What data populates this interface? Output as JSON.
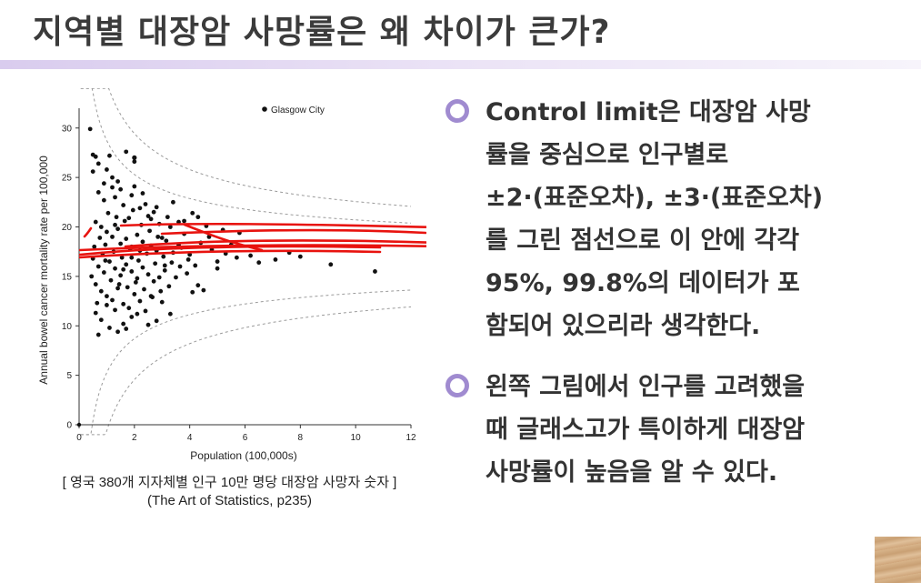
{
  "slide": {
    "title": "지역별 대장암 사망률은 왜 차이가 큰가?",
    "caption_line1": "[ 영국 380개 지자체별 인구 10만 명당 대장암 사망자 숫자 ]",
    "caption_line2": "(The Art of Statistics, p235)"
  },
  "bullets": [
    {
      "lines": [
        "Control limit은 대장암 사망",
        "률을 중심으로 인구별로",
        "±2·(표준오차), ±3·(표준오차)",
        "를 그린 점선으로 이 안에 각각",
        "95%, 99.8%의 데이터가 포",
        "함되어 있으리라 생각한다."
      ]
    },
    {
      "lines": [
        "왼쪽 그림에서 인구를 고려했을",
        "때 글래스고가 특이하게 대장암",
        "사망률이 높음을 알 수 있다."
      ]
    }
  ],
  "colors": {
    "bullet_marker": "#a08bd0",
    "annotation": "#e8130f"
  },
  "chart_data": {
    "type": "scatter",
    "xlabel": "Population (100,000s)",
    "ylabel": "Annual bowel cancer mortality rate per 100,000",
    "xlim": [
      0,
      12
    ],
    "ylim": [
      0,
      32
    ],
    "xticks": [
      0,
      2,
      4,
      6,
      8,
      10,
      12
    ],
    "yticks": [
      0,
      5,
      10,
      15,
      20,
      25,
      30
    ],
    "center_rate": 17,
    "legend": "Glasgow City",
    "legend_position": "top-right",
    "control_limits": "±2·SE and ±3·SE funnel (dotted)",
    "points": [
      [
        0.4,
        29.9
      ],
      [
        0.5,
        27.3
      ],
      [
        0.6,
        27.1
      ],
      [
        0.7,
        26.4
      ],
      [
        0.5,
        25.6
      ],
      [
        1.0,
        25.8
      ],
      [
        1.2,
        25.0
      ],
      [
        1.4,
        24.6
      ],
      [
        1.7,
        27.6
      ],
      [
        2.0,
        24.1
      ],
      [
        2.4,
        22.3
      ],
      [
        2.8,
        22.0
      ],
      [
        3.2,
        21.0
      ],
      [
        3.6,
        20.5
      ],
      [
        4.1,
        21.4
      ],
      [
        4.3,
        21.0
      ],
      [
        0.7,
        23.5
      ],
      [
        0.9,
        22.7
      ],
      [
        1.3,
        23.0
      ],
      [
        1.6,
        22.2
      ],
      [
        1.9,
        23.2
      ],
      [
        2.2,
        21.9
      ],
      [
        2.5,
        21.1
      ],
      [
        2.9,
        20.3
      ],
      [
        3.3,
        20.0
      ],
      [
        3.8,
        19.3
      ],
      [
        4.6,
        20.1
      ],
      [
        5.2,
        19.7
      ],
      [
        5.8,
        19.4
      ],
      [
        0.6,
        20.5
      ],
      [
        0.8,
        20.0
      ],
      [
        1.0,
        19.5
      ],
      [
        1.2,
        19.0
      ],
      [
        1.4,
        19.8
      ],
      [
        1.5,
        18.3
      ],
      [
        1.7,
        18.8
      ],
      [
        1.9,
        18.0
      ],
      [
        2.1,
        19.2
      ],
      [
        2.3,
        18.5
      ],
      [
        2.6,
        18.1
      ],
      [
        2.8,
        17.6
      ],
      [
        3.0,
        18.9
      ],
      [
        3.4,
        17.4
      ],
      [
        3.7,
        17.9
      ],
      [
        4.0,
        17.2
      ],
      [
        4.4,
        18.4
      ],
      [
        4.8,
        17.7
      ],
      [
        5.3,
        17.3
      ],
      [
        5.7,
        16.9
      ],
      [
        6.2,
        17.1
      ],
      [
        7.1,
        16.7
      ],
      [
        8.0,
        17.0
      ],
      [
        9.1,
        16.2
      ],
      [
        10.7,
        15.5
      ],
      [
        0.5,
        16.8
      ],
      [
        0.7,
        16.0
      ],
      [
        0.9,
        15.4
      ],
      [
        1.1,
        16.5
      ],
      [
        1.3,
        15.8
      ],
      [
        1.5,
        15.1
      ],
      [
        1.7,
        16.2
      ],
      [
        1.9,
        15.5
      ],
      [
        2.1,
        14.8
      ],
      [
        2.3,
        15.9
      ],
      [
        2.5,
        15.2
      ],
      [
        2.7,
        14.5
      ],
      [
        3.1,
        15.6
      ],
      [
        3.5,
        14.9
      ],
      [
        3.9,
        15.3
      ],
      [
        4.3,
        14.1
      ],
      [
        4.5,
        13.6
      ],
      [
        5.0,
        15.8
      ],
      [
        0.6,
        14.2
      ],
      [
        0.8,
        13.5
      ],
      [
        1.0,
        13.0
      ],
      [
        1.2,
        12.6
      ],
      [
        1.4,
        13.8
      ],
      [
        1.6,
        12.2
      ],
      [
        1.8,
        11.8
      ],
      [
        2.0,
        13.2
      ],
      [
        2.2,
        12.5
      ],
      [
        2.4,
        11.5
      ],
      [
        2.6,
        13.0
      ],
      [
        3.0,
        12.4
      ],
      [
        3.3,
        11.2
      ],
      [
        0.6,
        11.3
      ],
      [
        0.8,
        10.6
      ],
      [
        1.1,
        9.8
      ],
      [
        1.4,
        9.4
      ],
      [
        1.9,
        10.9
      ],
      [
        1.3,
        11.6
      ],
      [
        2.8,
        10.5
      ],
      [
        0.7,
        9.1
      ],
      [
        0.95,
        18.2
      ],
      [
        1.25,
        17.5
      ],
      [
        1.55,
        16.9
      ],
      [
        1.85,
        17.8
      ],
      [
        2.15,
        16.6
      ],
      [
        2.45,
        17.3
      ],
      [
        2.75,
        16.3
      ],
      [
        3.05,
        17.0
      ],
      [
        3.35,
        16.4
      ],
      [
        3.65,
        16.0
      ],
      [
        3.95,
        16.7
      ],
      [
        1.05,
        21.4
      ],
      [
        1.35,
        21.0
      ],
      [
        1.65,
        20.6
      ],
      [
        1.95,
        21.7
      ],
      [
        2.25,
        20.2
      ],
      [
        2.55,
        19.6
      ],
      [
        2.85,
        19.0
      ],
      [
        3.15,
        18.6
      ],
      [
        0.85,
        17.3
      ],
      [
        1.15,
        14.6
      ],
      [
        1.45,
        14.2
      ],
      [
        1.75,
        13.9
      ],
      [
        2.05,
        14.4
      ],
      [
        2.35,
        13.7
      ],
      [
        2.65,
        12.9
      ],
      [
        2.95,
        13.5
      ],
      [
        3.25,
        14.0
      ],
      [
        0.75,
        18.9
      ],
      [
        0.55,
        18.0
      ],
      [
        0.45,
        15.0
      ],
      [
        0.65,
        12.3
      ],
      [
        1.6,
        10.2
      ],
      [
        2.1,
        11.2
      ],
      [
        1.2,
        24.0
      ],
      [
        0.9,
        24.4
      ],
      [
        1.5,
        23.8
      ],
      [
        2.3,
        23.4
      ],
      [
        1.8,
        20.9
      ],
      [
        2.7,
        21.5
      ],
      [
        3.6,
        18.2
      ],
      [
        4.2,
        16.1
      ],
      [
        4.7,
        19.0
      ],
      [
        5.5,
        18.2
      ],
      [
        6.5,
        16.4
      ],
      [
        7.6,
        17.4
      ],
      [
        3.4,
        22.5
      ],
      [
        2.0,
        26.6
      ],
      [
        1.1,
        27.2
      ],
      [
        4.1,
        13.4
      ],
      [
        2.5,
        10.1
      ],
      [
        1.7,
        9.7
      ],
      [
        3.8,
        20.6
      ],
      [
        5.0,
        16.5
      ],
      [
        0.95,
        16.6
      ],
      [
        1.3,
        20.2
      ],
      [
        2.9,
        14.9
      ],
      [
        1.9,
        16.9
      ],
      [
        2.2,
        17.6
      ],
      [
        1.0,
        12.1
      ],
      [
        1.6,
        15.7
      ],
      [
        3.1,
        16.1
      ],
      [
        2.6,
        20.8
      ]
    ],
    "outlier": {
      "label": "Glasgow City",
      "x": 2.0,
      "y": 27.0
    }
  }
}
